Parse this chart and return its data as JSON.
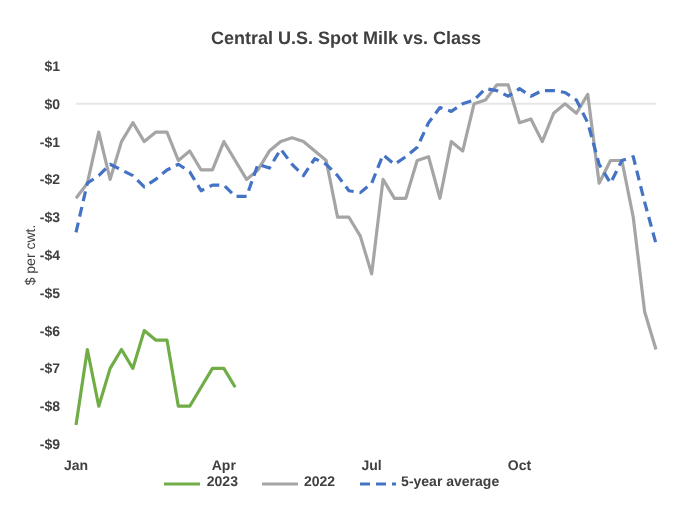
{
  "chart_data": {
    "type": "line",
    "title": "Central U.S. Spot Milk vs. Class",
    "ylabel": "$ per cwt.",
    "categories": [
      "Jan",
      null,
      null,
      null,
      null,
      null,
      null,
      null,
      null,
      null,
      null,
      null,
      null,
      "Apr",
      null,
      null,
      null,
      null,
      null,
      null,
      null,
      null,
      null,
      null,
      null,
      null,
      "Jul",
      null,
      null,
      null,
      null,
      null,
      null,
      null,
      null,
      null,
      null,
      null,
      null,
      "Oct",
      null,
      null,
      null,
      null,
      null,
      null,
      null,
      null,
      null,
      null,
      null,
      null
    ],
    "series": [
      {
        "name": "2023",
        "color": "#70ad47",
        "line_style": "solid",
        "values": [
          -8.5,
          -6.5,
          -8,
          -7,
          -6.5,
          -7,
          -6,
          -6.25,
          -6.25,
          -8,
          -8,
          -7.5,
          -7,
          -7,
          -7.5,
          null,
          null,
          null,
          null,
          null,
          null,
          null,
          null,
          null,
          null,
          null,
          null,
          null,
          null,
          null,
          null,
          null,
          null,
          null,
          null,
          null,
          null,
          null,
          null,
          null,
          null,
          null,
          null,
          null,
          null,
          null,
          null,
          null,
          null,
          null,
          null,
          null
        ]
      },
      {
        "name": "2022",
        "color": "#a5a5a5",
        "line_style": "solid",
        "values": [
          -2.5,
          -2.1,
          -0.75,
          -2,
          -1,
          -0.5,
          -1,
          -0.75,
          -0.75,
          -1.5,
          -1.25,
          -1.75,
          -1.75,
          -1,
          -1.5,
          -2,
          -1.75,
          -1.25,
          -1,
          -0.9,
          -1,
          -1.25,
          -1.5,
          -3,
          -3,
          -3.5,
          -4.5,
          -2,
          -2.5,
          -2.5,
          -1.5,
          -1.4,
          -2.5,
          -1,
          -1.25,
          0,
          0.1,
          0.5,
          0.5,
          -0.5,
          -0.4,
          -1,
          -0.25,
          0,
          -0.25,
          0.25,
          -2.1,
          -1.5,
          -1.5,
          -3,
          -5.5,
          -6.5
        ]
      },
      {
        "name": "5-year average",
        "color": "#4472c4",
        "line_style": "dashed",
        "values": [
          -3.4,
          -2.1,
          -1.9,
          -1.6,
          -1.75,
          -1.9,
          -2.2,
          -2,
          -1.75,
          -1.6,
          -1.8,
          -2.3,
          -2.15,
          -2.15,
          -2.45,
          -2.45,
          -1.6,
          -1.7,
          -1.2,
          -1.6,
          -1.9,
          -1.45,
          -1.6,
          -1.9,
          -2.3,
          -2.35,
          -2.1,
          -1.35,
          -1.6,
          -1.4,
          -1.15,
          -0.5,
          -0.1,
          -0.2,
          0,
          0.1,
          0.4,
          0.35,
          0.2,
          0.4,
          0.2,
          0.35,
          0.35,
          0.3,
          0.1,
          -0.5,
          -1.6,
          -2.1,
          -1.5,
          -1.4,
          -2.6,
          -3.7
        ]
      }
    ],
    "ylim": [
      -9,
      1
    ],
    "yticks": [
      {
        "value": 1,
        "label": "$1"
      },
      {
        "value": 0,
        "label": "$0"
      },
      {
        "value": -1,
        "label": "-$1"
      },
      {
        "value": -2,
        "label": "-$2"
      },
      {
        "value": -3,
        "label": "-$3"
      },
      {
        "value": -4,
        "label": "-$4"
      },
      {
        "value": -5,
        "label": "-$5"
      },
      {
        "value": -6,
        "label": "-$6"
      },
      {
        "value": -7,
        "label": "-$7"
      },
      {
        "value": -8,
        "label": "-$8"
      },
      {
        "value": -9,
        "label": "-$9"
      }
    ],
    "ref_lines": [
      {
        "axis": "y",
        "value": 0,
        "color": "#e6e6e6"
      }
    ],
    "grid": false,
    "legend": "bottom",
    "marker": "none"
  }
}
